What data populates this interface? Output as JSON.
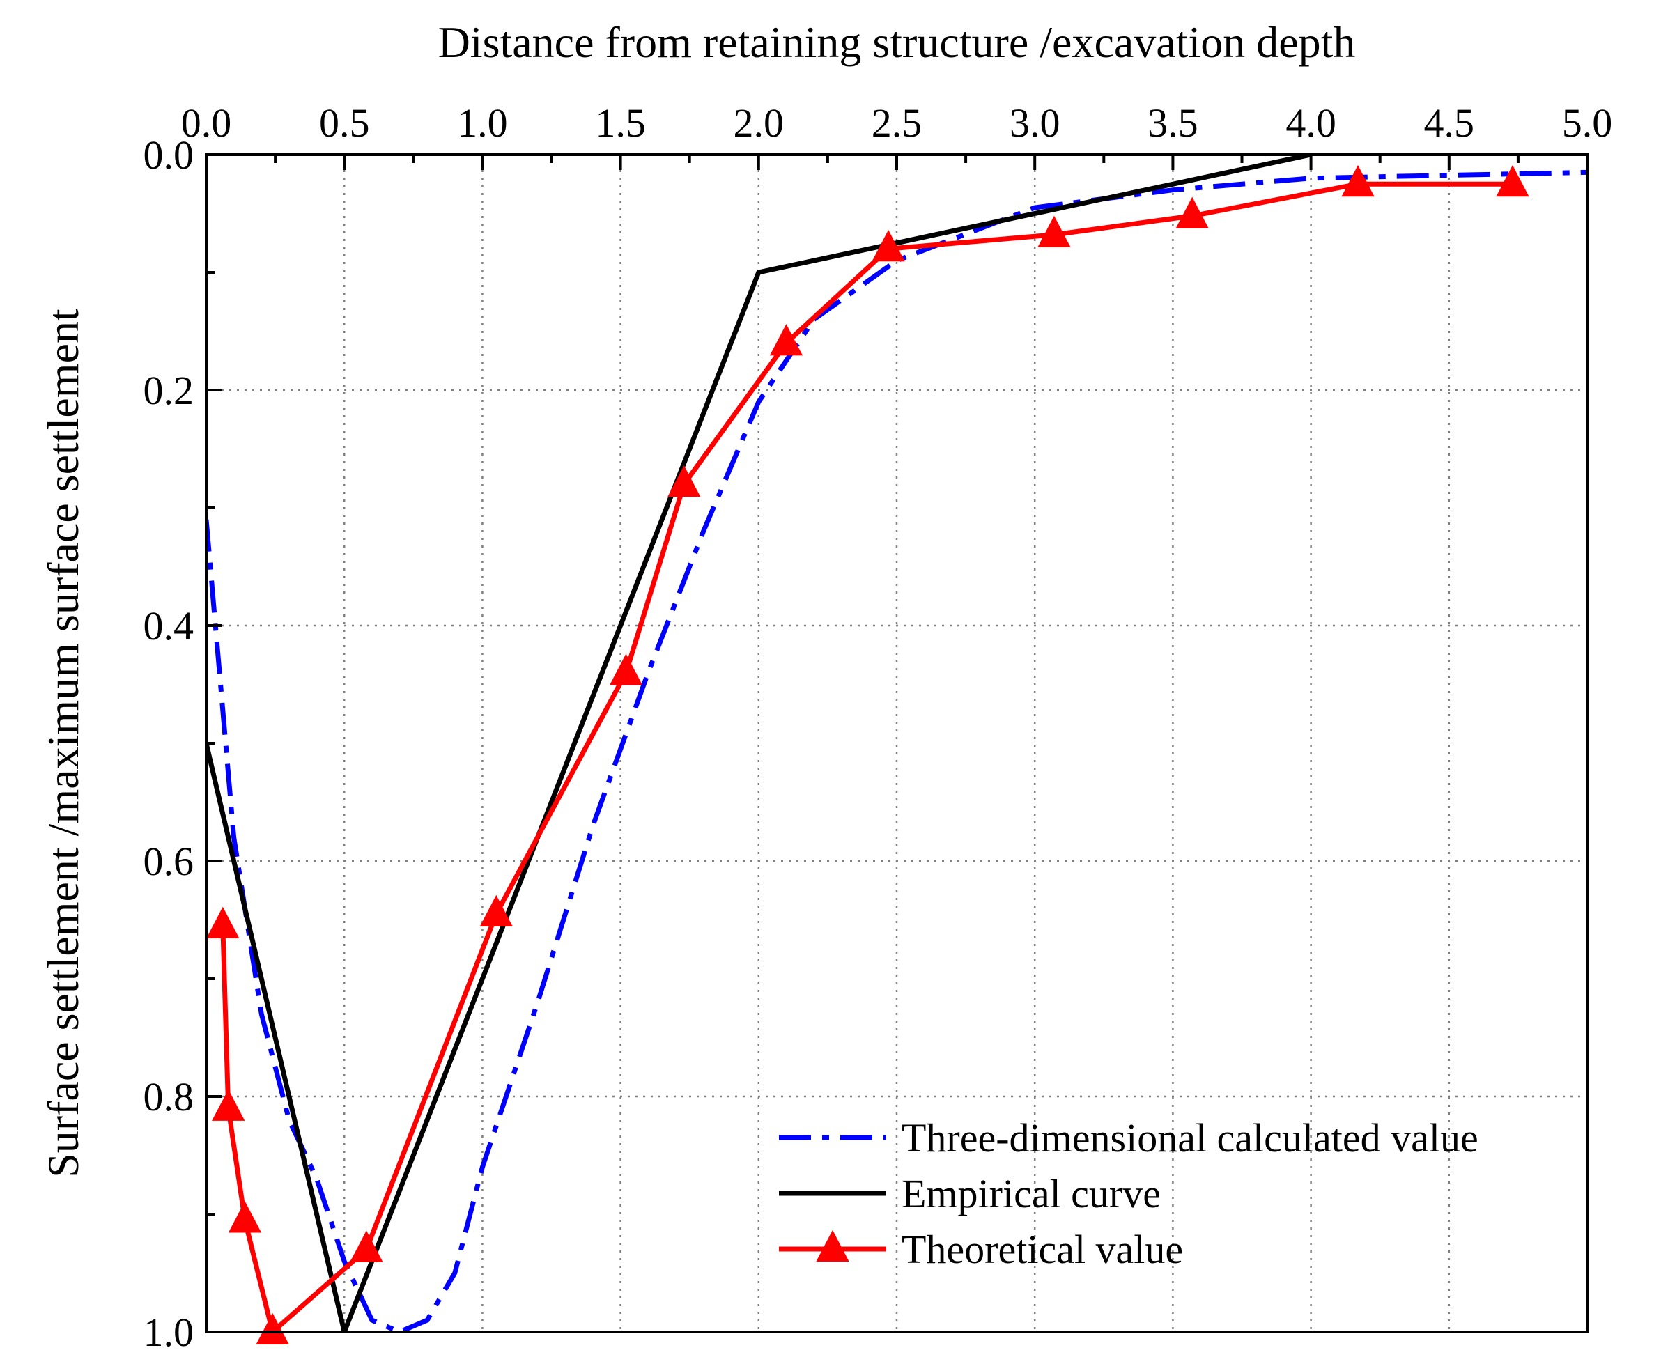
{
  "chart_data": {
    "type": "line",
    "xlabel": "Distance from retaining structure /excavation depth",
    "ylabel": "Surface settlement /maximum surface settlement",
    "xlim": [
      0,
      5
    ],
    "ylim": [
      0,
      1
    ],
    "y_inverted": true,
    "x_axis_position": "top",
    "grid": true,
    "legend_position": "bottom-right",
    "x_ticks": [
      "0.0",
      "0.5",
      "1.0",
      "1.5",
      "2.0",
      "2.5",
      "3.0",
      "3.5",
      "4.0",
      "4.5",
      "5.0"
    ],
    "x_tick_values": [
      0,
      0.5,
      1.0,
      1.5,
      2.0,
      2.5,
      3.0,
      3.5,
      4.0,
      4.5,
      5.0
    ],
    "y_ticks": [
      "0.0",
      "0.2",
      "0.4",
      "0.6",
      "0.8",
      "1.0"
    ],
    "y_tick_values": [
      0,
      0.2,
      0.4,
      0.6,
      0.8,
      1.0
    ],
    "series": [
      {
        "name": "Three-dimensional calculated value",
        "color": "#0000ff",
        "style": "dash-dot",
        "marker": "none",
        "x": [
          0.0,
          0.1,
          0.2,
          0.3,
          0.4,
          0.5,
          0.6,
          0.7,
          0.8,
          0.9,
          1.0,
          1.2,
          1.4,
          1.6,
          1.8,
          2.0,
          2.2,
          2.5,
          3.0,
          3.5,
          4.0,
          5.0
        ],
        "y": [
          0.31,
          0.58,
          0.73,
          0.82,
          0.87,
          0.94,
          0.99,
          1.0,
          0.99,
          0.95,
          0.86,
          0.72,
          0.57,
          0.44,
          0.32,
          0.21,
          0.14,
          0.09,
          0.045,
          0.03,
          0.02,
          0.015
        ]
      },
      {
        "name": "Empirical curve",
        "color": "#000000",
        "style": "solid",
        "marker": "none",
        "x": [
          0.0,
          0.5,
          2.0,
          4.0
        ],
        "y": [
          0.5,
          1.0,
          0.1,
          0.0
        ]
      },
      {
        "name": "Theoretical value",
        "color": "#ff0000",
        "style": "solid",
        "marker": "triangle",
        "x": [
          0.06,
          0.08,
          0.14,
          0.24,
          0.58,
          1.05,
          1.52,
          1.73,
          2.1,
          2.47,
          3.07,
          3.57,
          4.17,
          4.73
        ],
        "y": [
          0.655,
          0.81,
          0.905,
          1.0,
          0.93,
          0.645,
          0.44,
          0.28,
          0.16,
          0.08,
          0.068,
          0.052,
          0.025,
          0.025
        ]
      }
    ]
  }
}
